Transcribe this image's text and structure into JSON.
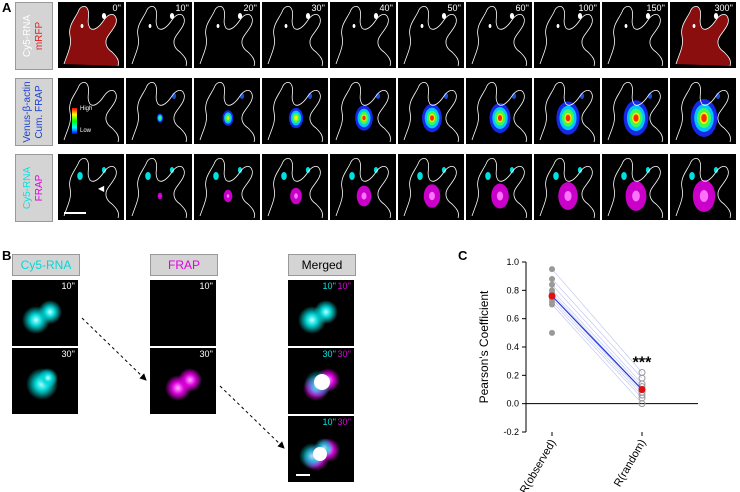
{
  "panel_a": {
    "letter": "A",
    "row_labels": [
      {
        "line1": "Cy5-RNA",
        "line2": "mRFP",
        "color1": "#ffffff",
        "color2": "#e32020"
      },
      {
        "line1": "Venus-β-actin",
        "line2": "Cum. FRAP",
        "color1": "#1a3fd6",
        "color2": "#1a3fd6"
      },
      {
        "line1": "Cy5-RNA",
        "line2": "FRAP",
        "color1": "#00e5e5",
        "color2": "#e000e0"
      }
    ],
    "timepoints": [
      "0''",
      "10''",
      "20''",
      "30''",
      "40''",
      "50''",
      "60''",
      "100''",
      "150''",
      "300''"
    ],
    "intensities": [
      0,
      0.1,
      0.3,
      0.45,
      0.6,
      0.7,
      0.75,
      0.85,
      0.92,
      1.0
    ],
    "colorbar": {
      "high": "High",
      "low": "Low"
    }
  },
  "panel_b": {
    "letter": "B",
    "headers": {
      "cy5": "Cy5-RNA",
      "frap": "FRAP",
      "merged": "Merged"
    },
    "cy5_times": [
      "10''",
      "30''"
    ],
    "frap_times": [
      "10''",
      "30''"
    ],
    "merged_times": [
      {
        "a": "10''",
        "b": "10''"
      },
      {
        "a": "30''",
        "b": "30''"
      },
      {
        "a": "10''",
        "b": "30''"
      }
    ]
  },
  "panel_c": {
    "letter": "C",
    "chart_data": {
      "type": "scatter",
      "ylabel": "Pearson's Coefficient",
      "categories": [
        "R(observed)",
        "R(random)"
      ],
      "ylim": [
        -0.2,
        1.0
      ],
      "yticks": [
        "1.0",
        "0.8",
        "0.6",
        "0.4",
        "0.2",
        "0.0",
        "-0.2"
      ],
      "observed": [
        0.95,
        0.88,
        0.84,
        0.8,
        0.78,
        0.76,
        0.74,
        0.72,
        0.7,
        0.5
      ],
      "random": [
        0.22,
        0.18,
        0.14,
        0.12,
        0.1,
        0.08,
        0.06,
        0.04,
        0.0
      ],
      "mean": [
        0.76,
        0.1
      ],
      "significance": "***"
    }
  }
}
